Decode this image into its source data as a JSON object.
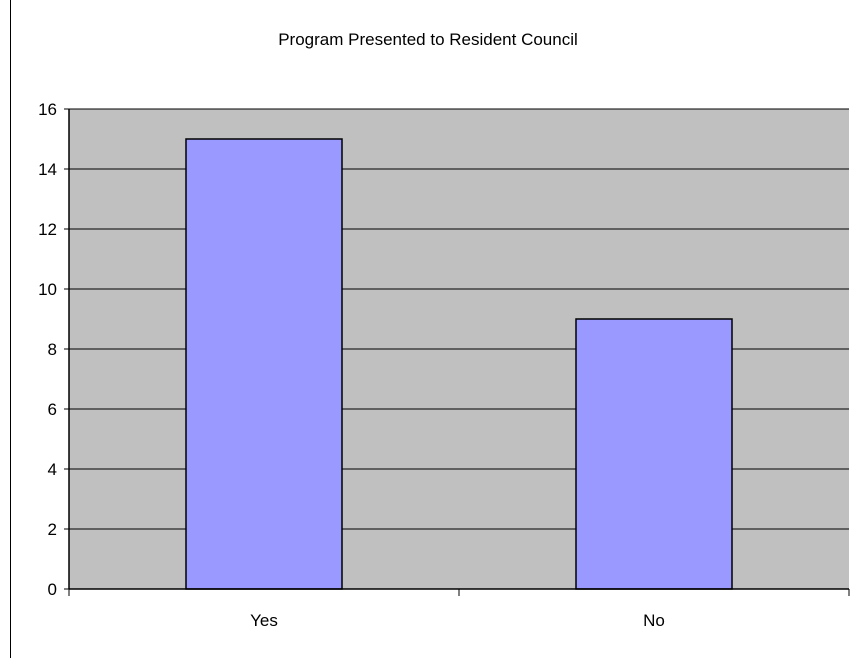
{
  "chart_data": {
    "type": "bar",
    "title": "Program Presented to Resident Council",
    "categories": [
      "Yes",
      "No"
    ],
    "values": [
      15,
      9
    ],
    "xlabel": "",
    "ylabel": "",
    "ylim": [
      0,
      16
    ],
    "yticks": [
      0,
      2,
      4,
      6,
      8,
      10,
      12,
      14,
      16
    ],
    "grid": true,
    "legend": "none",
    "colors": {
      "plot_background": "#c0c0c0",
      "bar_fill": "#9999ff",
      "bar_stroke": "#000000",
      "gridline": "#000000"
    }
  }
}
